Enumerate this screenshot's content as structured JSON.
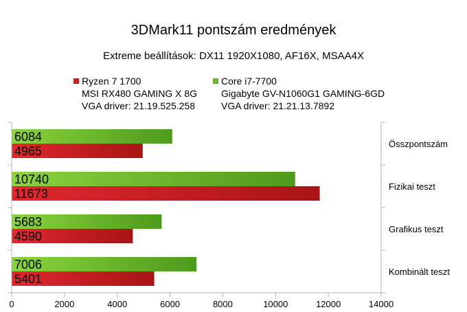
{
  "chart_data": {
    "type": "bar",
    "orientation": "horizontal",
    "title": "3DMark11 pontszám eredmények",
    "subtitle": "Extreme beállítások: DX11 1920X1080, AF16X, MSAA4X",
    "categories": [
      "Összpontszám",
      "Fizikai teszt",
      "Grafikus teszt",
      "Kombinált teszt"
    ],
    "series": [
      {
        "name": "Core i7-7700",
        "legend_lines": [
          "Core i7-7700",
          "Gigabyte GV-N1060G1 GAMING-6GD",
          "VGA driver: 21.21.13.7892"
        ],
        "color": "#66b32e",
        "values": [
          6084,
          10740,
          5683,
          7006
        ]
      },
      {
        "name": "Ryzen 7 1700",
        "legend_lines": [
          "Ryzen 7 1700",
          "MSI RX480 GAMING X 8G",
          "VGA driver: 21.19.525.258"
        ],
        "color": "#cc1f1f",
        "values": [
          4965,
          11673,
          4590,
          5401
        ]
      }
    ],
    "xlim": [
      0,
      14000
    ],
    "xticks": [
      "0",
      "2000",
      "4000",
      "6000",
      "8000",
      "10000",
      "12000",
      "14000"
    ],
    "grid": false,
    "legend_position": "top"
  }
}
